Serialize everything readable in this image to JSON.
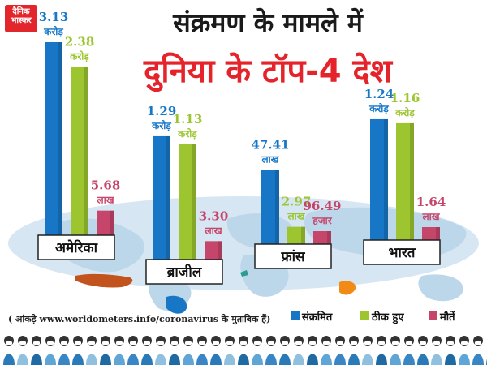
{
  "logo": {
    "line1": "दैनिक",
    "line2": "भास्कर"
  },
  "title": {
    "line1": "संक्रमण के मामले में",
    "line2": "दुनिया के टॉप-4 देश"
  },
  "footnote": "( आंकड़े www.worldometers.info/coronavirus के मुताबिक हैं)",
  "colors": {
    "infected": "#1777c6",
    "recovered": "#9cc530",
    "deaths": "#c6456b",
    "title_accent": "#e4232a",
    "map": "#bcd6ea"
  },
  "chart_data": {
    "type": "bar",
    "title": "दुनिया के टॉप-4 देश",
    "categories": [
      "अमेरिका",
      "ब्राजील",
      "फ्रांस",
      "भारत"
    ],
    "series": [
      {
        "name": "संक्रमित",
        "values": [
          31300000,
          12900000,
          4741000,
          12400000
        ],
        "labels": [
          [
            "3.13",
            "करोड़"
          ],
          [
            "1.29",
            "करोड़"
          ],
          [
            "47.41",
            "लाख"
          ],
          [
            "1.24",
            "करोड़"
          ]
        ]
      },
      {
        "name": "ठीक हुए",
        "values": [
          23800000,
          11300000,
          297000,
          11600000
        ],
        "labels": [
          [
            "2.38",
            "करोड़"
          ],
          [
            "1.13",
            "करोड़"
          ],
          [
            "2.97",
            "लाख"
          ],
          [
            "1.16",
            "करोड़"
          ]
        ]
      },
      {
        "name": "मौतें",
        "values": [
          568000,
          330000,
          96490,
          164000
        ],
        "labels": [
          [
            "5.68",
            "लाख"
          ],
          [
            "3.30",
            "लाख"
          ],
          [
            "96.49",
            "हजार"
          ],
          [
            "1.64",
            "लाख"
          ]
        ]
      }
    ],
    "legend_position": "bottom-right",
    "grid": false
  }
}
